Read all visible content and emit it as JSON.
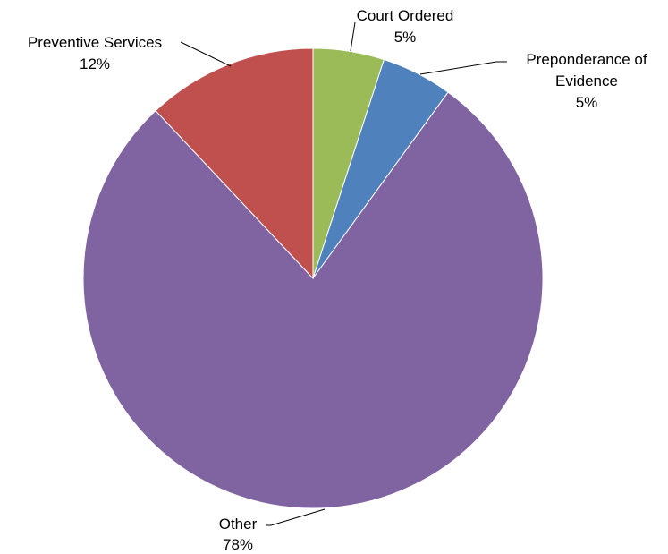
{
  "chart_data": {
    "type": "pie",
    "start": "12 o'clock",
    "direction": "clockwise",
    "slices": [
      {
        "label": "Court Ordered",
        "percent_label": "5%",
        "value": 5,
        "color": "#9BBB59"
      },
      {
        "label": "Preponderance of Evidence",
        "label_lines": [
          "Preponderance of",
          "Evidence"
        ],
        "percent_label": "5%",
        "value": 5,
        "color": "#4F81BD"
      },
      {
        "label": "Other",
        "percent_label": "78%",
        "value": 78,
        "color": "#8064A2"
      },
      {
        "label": "Preventive Services",
        "percent_label": "12%",
        "value": 12,
        "color": "#C0504D"
      }
    ],
    "legend": "none",
    "data_labels": "outside with leader lines"
  }
}
